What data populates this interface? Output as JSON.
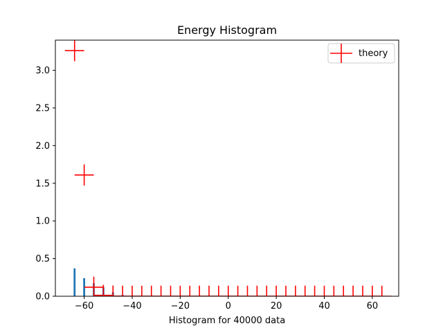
{
  "chart_data": {
    "type": "bar",
    "title": "Energy Histogram",
    "xlabel": "Histogram for 40000 data",
    "ylabel": "",
    "xlim": [
      -72,
      71
    ],
    "ylim": [
      0,
      3.4
    ],
    "x_ticks": [
      -60,
      -40,
      -20,
      0,
      20,
      40,
      60
    ],
    "x_tick_labels": [
      "−60",
      "−40",
      "−20",
      "0",
      "20",
      "40",
      "60"
    ],
    "y_ticks": [
      0.0,
      0.5,
      1.0,
      1.5,
      2.0,
      2.5,
      3.0
    ],
    "y_tick_labels": [
      "0.0",
      "0.5",
      "1.0",
      "1.5",
      "2.0",
      "2.5",
      "3.0"
    ],
    "grid": false,
    "legend": {
      "position": "upper right",
      "entries": [
        "theory"
      ]
    },
    "series": [
      {
        "name": "",
        "kind": "bar",
        "color": "#1f77b4",
        "bar_width": 0.8,
        "x": [
          -64,
          -60,
          -56,
          -52,
          -48,
          -44
        ],
        "values": [
          0.37,
          0.24,
          0.175,
          0.12,
          0.055,
          0.02
        ]
      },
      {
        "name": "theory",
        "kind": "errorbar",
        "color": "#ff0000",
        "x": [
          -64,
          -60,
          -56,
          -52,
          -48,
          -44,
          -40,
          -36,
          -32,
          -28,
          -24,
          -20,
          -16,
          -12,
          -8,
          -4,
          0,
          4,
          8,
          12,
          16,
          20,
          24,
          28,
          32,
          36,
          40,
          44,
          48,
          52,
          56,
          60,
          64
        ],
        "values": [
          3.26,
          1.61,
          0.12,
          0.012,
          0.002,
          0.0,
          0.0,
          0.0,
          0.0,
          0.0,
          0.0,
          0.0,
          0.0,
          0.0,
          0.0,
          0.0,
          0.0,
          0.0,
          0.0,
          0.0,
          0.0,
          0.0,
          0.0,
          0.0,
          0.0,
          0.0,
          0.0,
          0.0,
          0.0,
          0.0,
          0.0,
          0.0,
          0.0
        ],
        "x_err": 4,
        "y_err": [
          0.14,
          0.14,
          0.14,
          0.14,
          0.14,
          0.14,
          0.14,
          0.14,
          0.14,
          0.14,
          0.14,
          0.14,
          0.14,
          0.14,
          0.14,
          0.14,
          0.14,
          0.14,
          0.14,
          0.14,
          0.14,
          0.14,
          0.14,
          0.14,
          0.14,
          0.14,
          0.14,
          0.14,
          0.14,
          0.14,
          0.14,
          0.14,
          0.14
        ]
      }
    ]
  }
}
